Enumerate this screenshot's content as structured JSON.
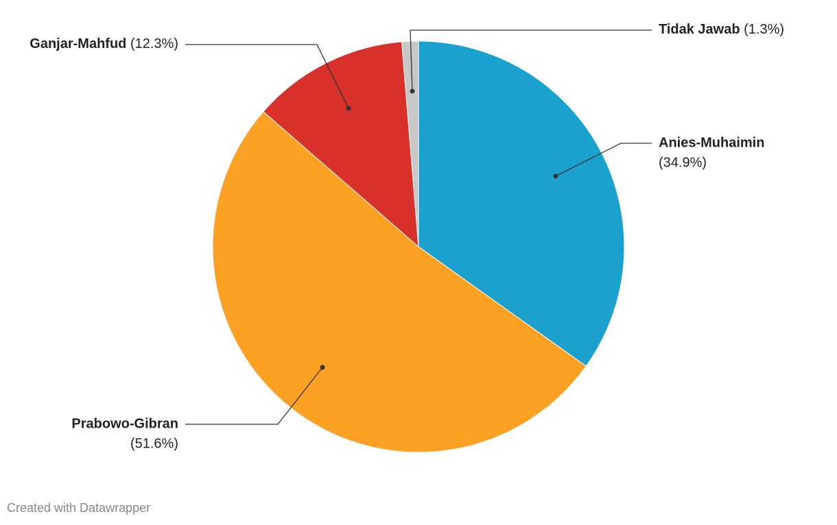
{
  "chart_data": {
    "type": "pie",
    "categories": [
      "Anies-Muhaimin",
      "Prabowo-Gibran",
      "Ganjar-Mahfud",
      "Tidak Jawab"
    ],
    "values": [
      34.9,
      51.6,
      12.3,
      1.3
    ],
    "value_labels": [
      "(34.9%)",
      "(51.6%)",
      "(12.3%)",
      "(1.3%)"
    ],
    "colors": [
      "#1aa1ce",
      "#fda125",
      "#d8302a",
      "#c8c8c8"
    ],
    "footer": "Created with Datawrapper"
  }
}
